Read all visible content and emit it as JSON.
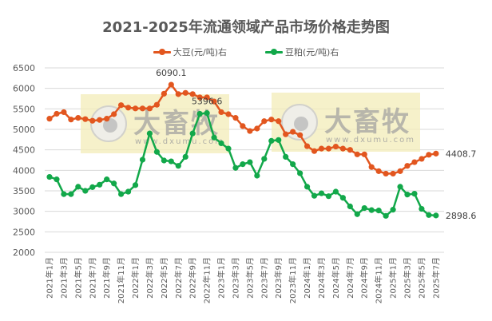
{
  "chart_data": {
    "type": "line",
    "title": "2021-2025年流通领域产品市场价格走势图",
    "xlabel": "",
    "ylabel": "",
    "ylim": [
      2000,
      6500
    ],
    "yticks": [
      2000,
      2500,
      3000,
      3500,
      4000,
      4500,
      5000,
      5500,
      6000,
      6500
    ],
    "grid": true,
    "legend_position": "top",
    "x": [
      "2021年1月",
      "2021年2月",
      "2021年3月",
      "2021年4月",
      "2021年5月",
      "2021年6月",
      "2021年7月",
      "2021年8月",
      "2021年9月",
      "2021年10月",
      "2021年11月",
      "2021年12月",
      "2022年1月",
      "2022年2月",
      "2022年3月",
      "2022年4月",
      "2022年5月",
      "2022年6月",
      "2022年7月",
      "2022年8月",
      "2022年9月",
      "2022年10月",
      "2022年11月",
      "2022年12月",
      "2023年1月",
      "2023年2月",
      "2023年3月",
      "2023年4月",
      "2023年5月",
      "2023年6月",
      "2023年7月",
      "2023年8月",
      "2023年9月",
      "2023年10月",
      "2023年11月",
      "2023年12月",
      "2024年1月",
      "2024年2月",
      "2024年3月",
      "2024年4月",
      "2024年5月",
      "2024年6月",
      "2024年7月",
      "2024年8月",
      "2024年9月",
      "2024年10月",
      "2024年11月",
      "2024年12月",
      "2025年1月",
      "2025年2月",
      "2025年3月",
      "2025年4月",
      "2025年5月",
      "2025年6月",
      "2025年7月"
    ],
    "xtick_labels": [
      "2021年1月",
      "2021年3月",
      "2021年5月",
      "2021年7月",
      "2021年9月",
      "2021年11月",
      "2022年1月",
      "2022年3月",
      "2022年5月",
      "2022年7月",
      "2022年9月",
      "2022年11月",
      "2023年1月",
      "2023年3月",
      "2023年5月",
      "2023年7月",
      "2023年9月",
      "2023年11月",
      "2024年1月",
      "2024年3月",
      "2024年5月",
      "2024年7月",
      "2024年9月",
      "2024年11月",
      "2025年1月",
      "2025年3月",
      "2025年5月",
      "2025年7月"
    ],
    "series": [
      {
        "name": "大豆(元/吨)右",
        "color": "#E2561F",
        "values": [
          5260,
          5380,
          5420,
          5240,
          5280,
          5250,
          5210,
          5230,
          5260,
          5370,
          5590,
          5530,
          5510,
          5510,
          5510,
          5600,
          5870,
          6090.1,
          5860,
          5890,
          5860,
          5780,
          5780,
          5680,
          5420,
          5370,
          5280,
          5080,
          4960,
          5020,
          5200,
          5240,
          5200,
          4880,
          4940,
          4860,
          4590,
          4470,
          4530,
          4530,
          4580,
          4530,
          4500,
          4390,
          4390,
          4080,
          3980,
          3920,
          3920,
          3980,
          4110,
          4200,
          4280,
          4380,
          4408.7
        ]
      },
      {
        "name": "豆粕(元/吨)右",
        "color": "#12A84A",
        "values": [
          3840,
          3780,
          3420,
          3420,
          3600,
          3500,
          3590,
          3650,
          3780,
          3680,
          3420,
          3480,
          3640,
          4260,
          4900,
          4450,
          4240,
          4220,
          4110,
          4330,
          4900,
          5380,
          5396.6,
          4800,
          4660,
          4530,
          4060,
          4150,
          4200,
          3870,
          4280,
          4720,
          4740,
          4330,
          4150,
          3930,
          3600,
          3380,
          3440,
          3370,
          3480,
          3330,
          3120,
          2930,
          3080,
          3030,
          3020,
          2890,
          3040,
          3600,
          3410,
          3430,
          3060,
          2910,
          2898.6
        ]
      }
    ],
    "annotations": [
      {
        "series": 0,
        "index": 17,
        "text": "6090.1"
      },
      {
        "series": 1,
        "index": 22,
        "text": "5396.6"
      },
      {
        "series": 0,
        "index": 54,
        "text": "4408.7"
      },
      {
        "series": 1,
        "index": 54,
        "text": "2898.6"
      }
    ]
  },
  "watermark": {
    "brand": "大畜牧",
    "url": "www.dxumu.com"
  }
}
